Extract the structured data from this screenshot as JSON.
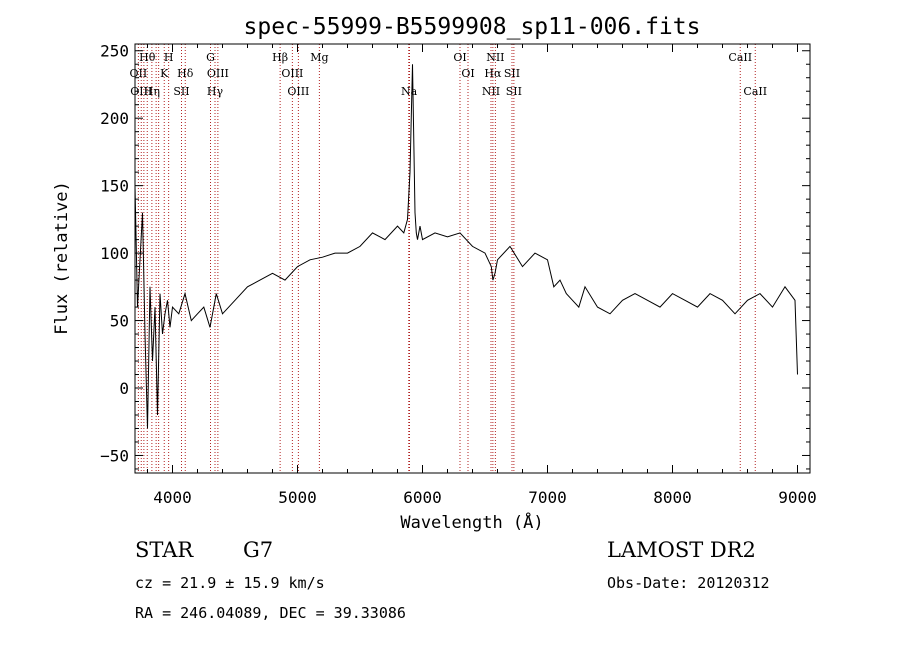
{
  "chart_data": {
    "type": "line",
    "title": "spec-55999-B5599908_sp11-006.fits",
    "xlabel": "Wavelength (Å)",
    "ylabel": "Flux (relative)",
    "xlim": [
      3700,
      9100
    ],
    "ylim": [
      -63,
      255
    ],
    "xticks": [
      4000,
      5000,
      6000,
      7000,
      8000,
      9000
    ],
    "yticks": [
      -50,
      0,
      50,
      100,
      150,
      200,
      250
    ],
    "line_color": "#000000",
    "marker_color": "#b22222",
    "series": [
      {
        "x": [
          3700,
          3720,
          3740,
          3760,
          3780,
          3800,
          3820,
          3840,
          3860,
          3880,
          3900,
          3920,
          3940,
          3960,
          3980,
          4000,
          4050,
          4100,
          4150,
          4200,
          4250,
          4300,
          4350,
          4400,
          4500,
          4600,
          4700,
          4800,
          4900,
          5000,
          5100,
          5200,
          5300,
          5400,
          5500,
          5600,
          5700,
          5800,
          5850,
          5880,
          5900,
          5920,
          5940,
          5950,
          5960,
          5980,
          6000,
          6100,
          6200,
          6300,
          6400,
          6500,
          6550,
          6563,
          6580,
          6600,
          6700,
          6800,
          6900,
          7000,
          7050,
          7100,
          7150,
          7200,
          7250,
          7300,
          7400,
          7500,
          7600,
          7700,
          7800,
          7900,
          8000,
          8100,
          8200,
          8300,
          8400,
          8500,
          8600,
          8700,
          8800,
          8900,
          8980,
          9000
        ],
        "y": [
          150,
          60,
          95,
          130,
          40,
          -30,
          75,
          20,
          60,
          -20,
          70,
          40,
          55,
          65,
          45,
          60,
          55,
          70,
          50,
          55,
          60,
          45,
          70,
          55,
          65,
          75,
          80,
          85,
          80,
          90,
          95,
          97,
          100,
          100,
          105,
          115,
          110,
          120,
          115,
          125,
          160,
          240,
          130,
          115,
          110,
          120,
          110,
          115,
          112,
          115,
          105,
          100,
          90,
          80,
          85,
          95,
          105,
          90,
          100,
          95,
          75,
          80,
          70,
          65,
          60,
          75,
          60,
          55,
          65,
          70,
          65,
          60,
          70,
          65,
          60,
          70,
          65,
          55,
          65,
          70,
          60,
          75,
          65,
          10
        ]
      }
    ],
    "line_markers": {
      "wavelengths": [
        3727,
        3750,
        3771,
        3798,
        3835,
        3869,
        3889,
        3934,
        3969,
        4072,
        4102,
        4304,
        4340,
        4363,
        4861,
        4959,
        5007,
        5175,
        5890,
        5896,
        6300,
        6364,
        6548,
        6563,
        6583,
        6716,
        6731,
        8542,
        8662
      ],
      "labels": [
        {
          "text": "Hθ",
          "wl": 3798,
          "row": 0
        },
        {
          "text": "H",
          "wl": 3969,
          "row": 0
        },
        {
          "text": "G",
          "wl": 4304,
          "row": 0
        },
        {
          "text": "Hβ",
          "wl": 4861,
          "row": 0
        },
        {
          "text": "Mg",
          "wl": 5175,
          "row": 0
        },
        {
          "text": "OI",
          "wl": 6300,
          "row": 0
        },
        {
          "text": "NII",
          "wl": 6583,
          "row": 0
        },
        {
          "text": "CaII",
          "wl": 8542,
          "row": 0
        },
        {
          "text": "OII",
          "wl": 3727,
          "row": 1
        },
        {
          "text": "K",
          "wl": 3934,
          "row": 1
        },
        {
          "text": "Hδ",
          "wl": 4102,
          "row": 1
        },
        {
          "text": "OIII",
          "wl": 4363,
          "row": 1
        },
        {
          "text": "OIII",
          "wl": 4959,
          "row": 1
        },
        {
          "text": "OI",
          "wl": 6364,
          "row": 1
        },
        {
          "text": "Hα",
          "wl": 6563,
          "row": 1
        },
        {
          "text": "SII",
          "wl": 6716,
          "row": 1
        },
        {
          "text": "OIII",
          "wl": 3750,
          "row": 2
        },
        {
          "text": "Hη",
          "wl": 3835,
          "row": 2
        },
        {
          "text": "SII",
          "wl": 4072,
          "row": 2
        },
        {
          "text": "Hγ",
          "wl": 4340,
          "row": 2
        },
        {
          "text": "OIII",
          "wl": 5007,
          "row": 2
        },
        {
          "text": "Na",
          "wl": 5893,
          "row": 2
        },
        {
          "text": "NII",
          "wl": 6548,
          "row": 2
        },
        {
          "text": "SII",
          "wl": 6731,
          "row": 2
        },
        {
          "text": "CaII",
          "wl": 8662,
          "row": 2
        }
      ]
    }
  },
  "info": {
    "class": "STAR",
    "subclass": "G7",
    "survey": "LAMOST DR2",
    "cz": "cz = 21.9 ± 15.9 km/s",
    "obs_date": "Obs-Date: 20120312",
    "coords": "RA = 246.04089, DEC =  39.33086"
  }
}
